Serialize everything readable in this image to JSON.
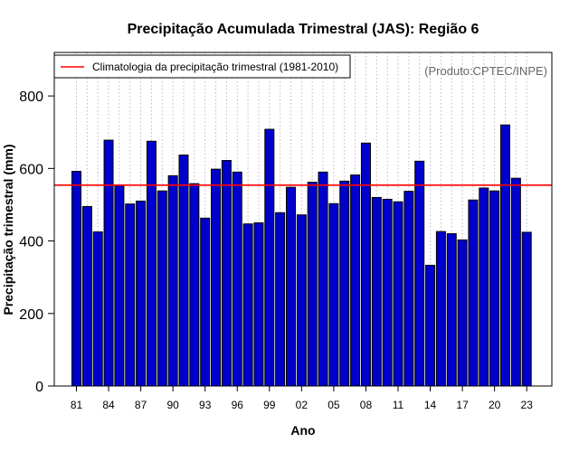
{
  "colors": {
    "bar_fill": "#0000CC",
    "bar_stroke": "#000000",
    "climatology_line": "#FF0000",
    "grid": "#BBBBBB",
    "credit_text": "#666666"
  },
  "chart_data": {
    "type": "bar",
    "title": "Precipitação Acumulada Trimestral (JAS): Região 6",
    "xlabel": "Ano",
    "ylabel": "Precipitação trimestral (mm)",
    "ylim": [
      0,
      920
    ],
    "yticks": [
      0,
      200,
      400,
      600,
      800
    ],
    "grid": "vertical dotted",
    "credit": "(Produto:CPTEC/INPE)",
    "categories": [
      "1981",
      "1982",
      "1983",
      "1984",
      "1985",
      "1986",
      "1987",
      "1988",
      "1989",
      "1990",
      "1991",
      "1992",
      "1993",
      "1994",
      "1995",
      "1996",
      "1997",
      "1998",
      "1999",
      "2000",
      "2001",
      "2002",
      "2003",
      "2004",
      "2005",
      "2006",
      "2007",
      "2008",
      "2009",
      "2010",
      "2011",
      "2012",
      "2013",
      "2014",
      "2015",
      "2016",
      "2017",
      "2018",
      "2019",
      "2020",
      "2021",
      "2022",
      "2023"
    ],
    "tick_labels": [
      "81",
      "84",
      "87",
      "90",
      "93",
      "96",
      "99",
      "02",
      "05",
      "08",
      "11",
      "14",
      "17",
      "20",
      "23"
    ],
    "values": [
      592,
      495,
      425,
      678,
      553,
      502,
      510,
      675,
      538,
      580,
      637,
      558,
      463,
      598,
      622,
      590,
      447,
      450,
      708,
      478,
      548,
      472,
      562,
      590,
      503,
      565,
      582,
      670,
      520,
      515,
      508,
      537,
      620,
      333,
      426,
      420,
      403,
      513,
      546,
      538,
      720,
      573,
      424
    ],
    "legend": {
      "position": "top-left",
      "entries": [
        {
          "label": "Climatologia da precipitação trimestral (1981-2010)",
          "value": 554
        }
      ]
    }
  }
}
